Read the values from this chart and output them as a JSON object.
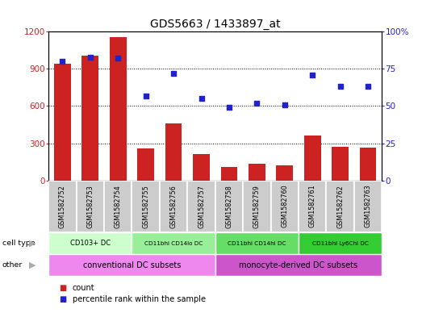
{
  "title": "GDS5663 / 1433897_at",
  "samples": [
    "GSM1582752",
    "GSM1582753",
    "GSM1582754",
    "GSM1582755",
    "GSM1582756",
    "GSM1582757",
    "GSM1582758",
    "GSM1582759",
    "GSM1582760",
    "GSM1582761",
    "GSM1582762",
    "GSM1582763"
  ],
  "counts": [
    940,
    1005,
    1155,
    255,
    460,
    215,
    105,
    135,
    120,
    360,
    270,
    265
  ],
  "percentiles": [
    80,
    83,
    82,
    57,
    72,
    55,
    49,
    52,
    51,
    71,
    63,
    63
  ],
  "bar_color": "#cc2222",
  "dot_color": "#2222cc",
  "ylim_left": [
    0,
    1200
  ],
  "ylim_right": [
    0,
    100
  ],
  "yticks_left": [
    0,
    300,
    600,
    900,
    1200
  ],
  "ytick_labels_left": [
    "0",
    "300",
    "600",
    "900",
    "1200"
  ],
  "yticks_right": [
    0,
    25,
    50,
    75,
    100
  ],
  "ytick_labels_right": [
    "0",
    "25",
    "50",
    "75",
    "100%"
  ],
  "cell_types": [
    {
      "label": "CD103+ DC",
      "start": 0,
      "end": 3,
      "color": "#ccffcc"
    },
    {
      "label": "CD11bhi CD14lo DC",
      "start": 3,
      "end": 6,
      "color": "#99ee99"
    },
    {
      "label": "CD11bhi CD14hi DC",
      "start": 6,
      "end": 9,
      "color": "#66dd66"
    },
    {
      "label": "CD11bhi Ly6Chi DC",
      "start": 9,
      "end": 12,
      "color": "#33cc33"
    }
  ],
  "other_groups": [
    {
      "label": "conventional DC subsets",
      "start": 0,
      "end": 6,
      "color": "#ee88ee"
    },
    {
      "label": "monocyte-derived DC subsets",
      "start": 6,
      "end": 12,
      "color": "#cc55cc"
    }
  ],
  "cell_type_row_label": "cell type",
  "other_row_label": "other",
  "legend_count_label": "count",
  "legend_percentile_label": "percentile rank within the sample",
  "bg_color": "#ffffff",
  "sample_col_color": "#cccccc",
  "arrow_color": "#aaaaaa"
}
